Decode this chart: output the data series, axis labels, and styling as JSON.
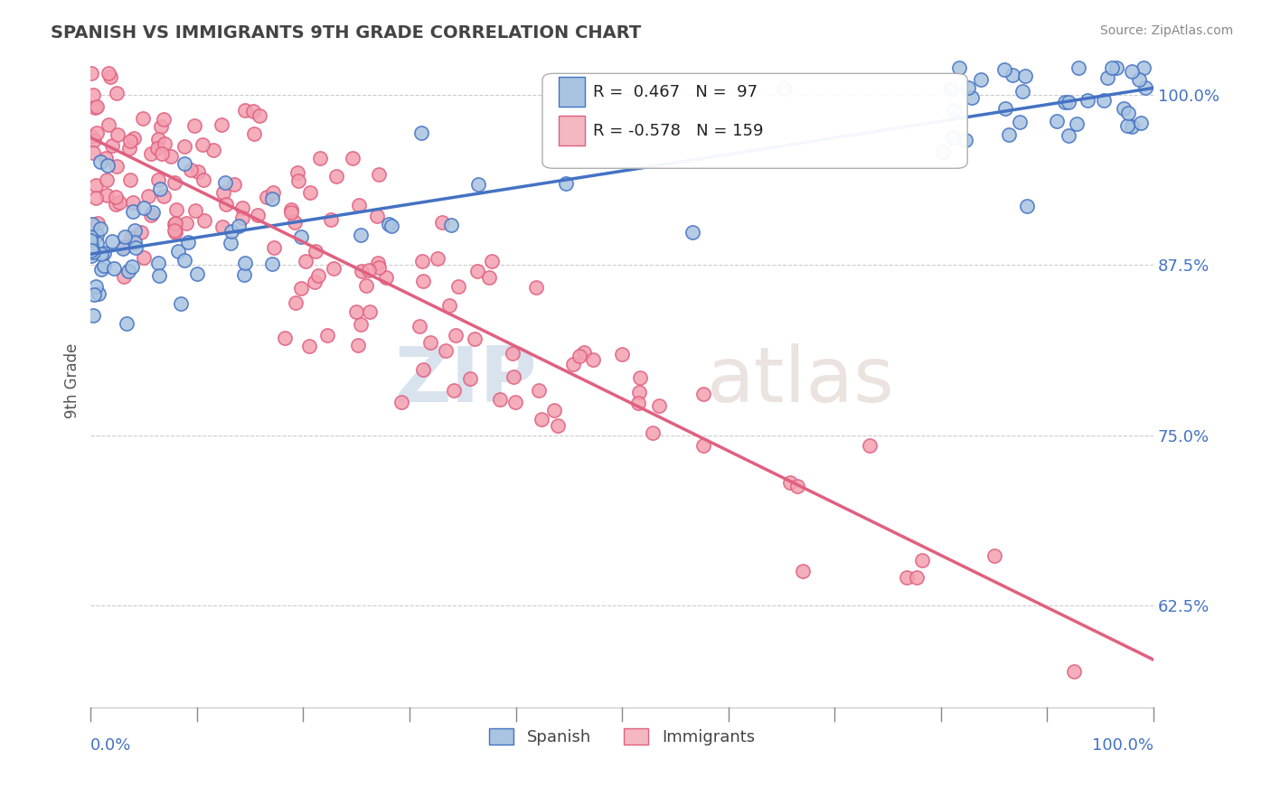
{
  "title": "SPANISH VS IMMIGRANTS 9TH GRADE CORRELATION CHART",
  "source": "Source: ZipAtlas.com",
  "ylabel": "9th Grade",
  "xlim": [
    0.0,
    1.0
  ],
  "ylim": [
    0.55,
    1.03
  ],
  "yticks_right": [
    1.0,
    0.875,
    0.75,
    0.625
  ],
  "ytick_labels_right": [
    "100.0%",
    "87.5%",
    "75.0%",
    "62.5%"
  ],
  "legend_r_spanish": "R =  0.467",
  "legend_n_spanish": "N =  97",
  "legend_r_immigrants": "R = -0.578",
  "legend_n_immigrants": "N = 159",
  "color_spanish_fill": "#a8c4e0",
  "color_immigrants_fill": "#f4a0b0",
  "color_spanish_line": "#4472c4",
  "color_immigrants_line": "#e06080",
  "color_legend_spanish_fill": "#a8c4e0",
  "color_legend_immigrants_fill": "#f4b8c0",
  "watermark_zip": "ZIP",
  "watermark_atlas": "atlas"
}
